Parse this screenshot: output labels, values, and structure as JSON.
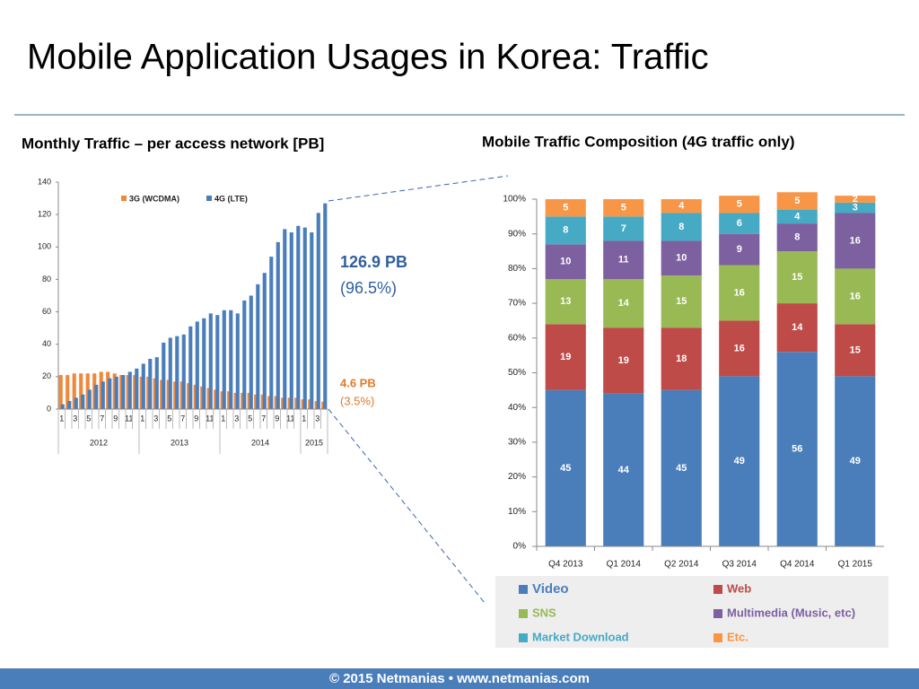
{
  "page": {
    "title": "Mobile Application Usages in Korea: Traffic",
    "footer": "© 2015 Netmanias • www.netmanias.com"
  },
  "chart_data": [
    {
      "type": "bar",
      "title": "Monthly Traffic – per access network [PB]",
      "categories": [
        "1",
        null,
        "3",
        null,
        "5",
        null,
        "7",
        null,
        "9",
        null,
        "11",
        null,
        "1",
        null,
        "3",
        null,
        "5",
        null,
        "7",
        null,
        "9",
        null,
        "11",
        null,
        "1",
        null,
        "3",
        null,
        "5",
        null,
        "7",
        null,
        "9",
        null,
        "11",
        null,
        "1",
        null,
        "3",
        null
      ],
      "year_groups": [
        "2012",
        "2013",
        "2014",
        "2015"
      ],
      "series": [
        {
          "name": "3G (WCDMA)",
          "color": "#f0883a",
          "values": [
            21,
            21,
            22,
            22,
            22,
            22,
            23,
            23,
            22,
            21,
            21,
            21,
            20,
            20,
            19,
            18,
            18,
            17,
            17,
            16,
            15,
            14,
            13,
            12,
            11,
            11,
            10,
            10,
            10,
            9,
            9,
            8,
            8,
            7,
            7,
            7,
            6,
            6,
            5,
            4.6
          ]
        },
        {
          "name": "4G (LTE)",
          "color": "#4a7ebb",
          "values": [
            3,
            5,
            7,
            9,
            12,
            15,
            17,
            19,
            20,
            21,
            23,
            25,
            28,
            31,
            32,
            41,
            44,
            45,
            46,
            51,
            54,
            56,
            59,
            58,
            61,
            61,
            59,
            67,
            70,
            77,
            84,
            94,
            103,
            111,
            109,
            113,
            112,
            109,
            121,
            126.9
          ]
        }
      ],
      "ylim": [
        0,
        140
      ],
      "yticks": [
        0,
        20,
        40,
        60,
        80,
        100,
        120,
        140
      ],
      "annotations": [
        "126.9 PB",
        "(96.5%)",
        "4.6 PB",
        "(3.5%)"
      ],
      "legend": "top"
    },
    {
      "type": "stacked_bar",
      "title": "Mobile Traffic Composition (4G traffic only)",
      "categories": [
        "Q4 2013",
        "Q1 2014",
        "Q2 2014",
        "Q3 2014",
        "Q4 2014",
        "Q1 2015"
      ],
      "series": [
        {
          "name": "Video",
          "color": "#4a7ebb",
          "values": [
            45,
            44,
            45,
            49,
            56,
            49
          ]
        },
        {
          "name": "Web",
          "color": "#be4b48",
          "values": [
            19,
            19,
            18,
            16,
            14,
            15
          ]
        },
        {
          "name": "SNS",
          "color": "#98b954",
          "values": [
            13,
            14,
            15,
            16,
            15,
            16
          ]
        },
        {
          "name": "Multimedia (Music, etc)",
          "color": "#7d60a0",
          "values": [
            10,
            11,
            10,
            9,
            8,
            16
          ]
        },
        {
          "name": "Market Download",
          "color": "#46aac5",
          "values": [
            8,
            7,
            8,
            6,
            4,
            3
          ]
        },
        {
          "name": "Etc.",
          "color": "#f79646",
          "values": [
            5,
            5,
            4,
            5,
            5,
            2
          ]
        }
      ],
      "ylim": [
        0,
        100
      ],
      "yticks": [
        {
          "value": 0,
          "label": "0%"
        },
        {
          "value": 10,
          "label": "10%"
        },
        {
          "value": 20,
          "label": "20%"
        },
        {
          "value": 30,
          "label": "30%"
        },
        {
          "value": 40,
          "label": "40%"
        },
        {
          "value": 50,
          "label": "50%"
        },
        {
          "value": 60,
          "label": "60%"
        },
        {
          "value": 70,
          "label": "70%"
        },
        {
          "value": 80,
          "label": "80%"
        },
        {
          "value": 90,
          "label": "90%"
        },
        {
          "value": 100,
          "label": "100%"
        }
      ],
      "legend": "bottom"
    }
  ]
}
